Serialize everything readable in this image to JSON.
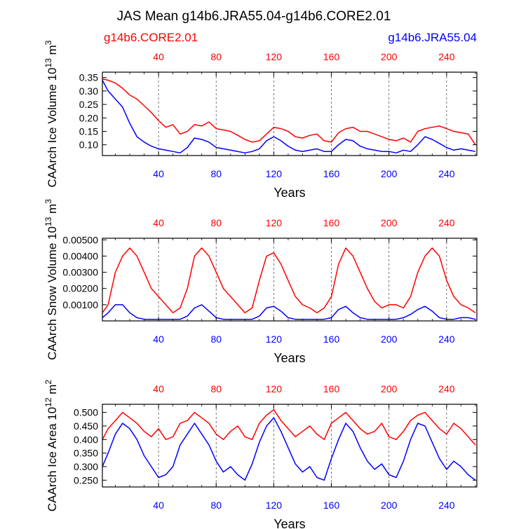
{
  "figure": {
    "title": "JAS Mean g14b6.JRA55.04-g14b6.CORE2.01",
    "legend_left": "g14b6.CORE2.01",
    "legend_right": "g14b6.JRA55.04",
    "colors": {
      "core": "#ff0000",
      "jra": "#0000ff",
      "axis": "#000000",
      "grid": "#555555"
    }
  },
  "chart_data": [
    {
      "type": "line",
      "title": "",
      "xlabel": "Years",
      "ylabel": "CAArch Ice Volume 10^13 m^3",
      "ylabel_parts": {
        "pre": "CAArch Ice Volume 10",
        "exp1": "13",
        "mid": " m",
        "exp2": "3"
      },
      "xlim": [
        1,
        261
      ],
      "ylim": [
        0.06,
        0.37
      ],
      "yticks": [
        0.1,
        0.15,
        0.2,
        0.25,
        0.3,
        0.35
      ],
      "ytick_labels": [
        "0.10",
        "0.15",
        "0.20",
        "0.25",
        "0.30",
        "0.35"
      ],
      "xticks": [
        40,
        80,
        120,
        160,
        200,
        240
      ],
      "xtick_labels": [
        "40",
        "80",
        "120",
        "160",
        "200",
        "240"
      ],
      "series": [
        {
          "name": "g14b6.CORE2.01",
          "x": [
            1,
            5,
            10,
            15,
            20,
            25,
            30,
            35,
            40,
            45,
            50,
            55,
            60,
            65,
            70,
            75,
            80,
            85,
            90,
            95,
            100,
            105,
            110,
            115,
            120,
            125,
            130,
            135,
            140,
            145,
            150,
            155,
            160,
            165,
            170,
            175,
            180,
            185,
            190,
            195,
            200,
            205,
            210,
            215,
            220,
            225,
            230,
            235,
            240,
            245,
            250,
            255,
            260
          ],
          "values": [
            0.345,
            0.34,
            0.33,
            0.31,
            0.285,
            0.27,
            0.245,
            0.22,
            0.19,
            0.165,
            0.175,
            0.14,
            0.15,
            0.175,
            0.17,
            0.185,
            0.16,
            0.155,
            0.15,
            0.135,
            0.12,
            0.11,
            0.115,
            0.14,
            0.165,
            0.16,
            0.15,
            0.13,
            0.125,
            0.135,
            0.14,
            0.115,
            0.11,
            0.145,
            0.16,
            0.165,
            0.15,
            0.15,
            0.14,
            0.13,
            0.12,
            0.115,
            0.125,
            0.11,
            0.15,
            0.16,
            0.165,
            0.17,
            0.16,
            0.15,
            0.145,
            0.14,
            0.1
          ]
        },
        {
          "name": "g14b6.JRA55.04",
          "x": [
            1,
            5,
            10,
            15,
            20,
            25,
            30,
            35,
            40,
            45,
            50,
            55,
            60,
            65,
            70,
            75,
            80,
            85,
            90,
            95,
            100,
            105,
            110,
            115,
            120,
            125,
            130,
            135,
            140,
            145,
            150,
            155,
            160,
            165,
            170,
            175,
            180,
            185,
            190,
            195,
            200,
            205,
            210,
            215,
            220,
            225,
            230,
            235,
            240,
            245,
            250,
            255,
            260
          ],
          "values": [
            0.34,
            0.3,
            0.27,
            0.24,
            0.18,
            0.13,
            0.11,
            0.095,
            0.085,
            0.08,
            0.075,
            0.07,
            0.09,
            0.125,
            0.12,
            0.11,
            0.09,
            0.085,
            0.08,
            0.075,
            0.07,
            0.075,
            0.085,
            0.115,
            0.13,
            0.115,
            0.095,
            0.08,
            0.075,
            0.08,
            0.085,
            0.075,
            0.075,
            0.1,
            0.12,
            0.115,
            0.095,
            0.085,
            0.08,
            0.075,
            0.075,
            0.07,
            0.08,
            0.075,
            0.1,
            0.13,
            0.12,
            0.105,
            0.09,
            0.08,
            0.085,
            0.08,
            0.075
          ]
        }
      ]
    },
    {
      "type": "line",
      "title": "",
      "xlabel": "Years",
      "ylabel": "CAArch Snow Volume 10^13 m^3",
      "ylabel_parts": {
        "pre": "CAArch Snow Volume 10",
        "exp1": "13",
        "mid": " m",
        "exp2": "3"
      },
      "xlim": [
        1,
        261
      ],
      "ylim": [
        0.0,
        0.0051
      ],
      "yticks": [
        0.001,
        0.002,
        0.003,
        0.004,
        0.005
      ],
      "ytick_labels": [
        "0.00100",
        "0.00200",
        "0.00300",
        "0.00400",
        "0.00500"
      ],
      "xticks": [
        40,
        80,
        120,
        160,
        200,
        240
      ],
      "xtick_labels": [
        "40",
        "80",
        "120",
        "160",
        "200",
        "240"
      ],
      "series": [
        {
          "name": "g14b6.CORE2.01",
          "x": [
            1,
            5,
            10,
            15,
            20,
            25,
            30,
            35,
            40,
            45,
            50,
            55,
            60,
            65,
            70,
            75,
            80,
            85,
            90,
            95,
            100,
            105,
            110,
            115,
            120,
            125,
            130,
            135,
            140,
            145,
            150,
            155,
            160,
            165,
            170,
            175,
            180,
            185,
            190,
            195,
            200,
            205,
            210,
            215,
            220,
            225,
            230,
            235,
            240,
            245,
            250,
            255,
            260
          ],
          "values": [
            0.0005,
            0.001,
            0.003,
            0.004,
            0.0045,
            0.004,
            0.003,
            0.002,
            0.0015,
            0.001,
            0.0005,
            0.0008,
            0.002,
            0.004,
            0.0045,
            0.004,
            0.003,
            0.002,
            0.0015,
            0.001,
            0.0005,
            0.0008,
            0.0025,
            0.004,
            0.0042,
            0.0035,
            0.0025,
            0.0015,
            0.001,
            0.0008,
            0.0005,
            0.0008,
            0.0015,
            0.0035,
            0.0045,
            0.004,
            0.003,
            0.002,
            0.0012,
            0.0008,
            0.001,
            0.001,
            0.0008,
            0.0015,
            0.003,
            0.004,
            0.0045,
            0.004,
            0.0025,
            0.0015,
            0.001,
            0.0008,
            0.0005
          ]
        },
        {
          "name": "g14b6.JRA55.04",
          "x": [
            1,
            5,
            10,
            15,
            20,
            25,
            30,
            35,
            40,
            45,
            50,
            55,
            60,
            65,
            70,
            75,
            80,
            85,
            90,
            95,
            100,
            105,
            110,
            115,
            120,
            125,
            130,
            135,
            140,
            145,
            150,
            155,
            160,
            165,
            170,
            175,
            180,
            185,
            190,
            195,
            200,
            205,
            210,
            215,
            220,
            225,
            230,
            235,
            240,
            245,
            250,
            255,
            260
          ],
          "values": [
            0.0002,
            0.0005,
            0.001,
            0.001,
            0.0005,
            0.0002,
            0.0001,
            0.0001,
            0.0001,
            0.0001,
            0.0001,
            0.0001,
            0.0003,
            0.0008,
            0.001,
            0.0006,
            0.0002,
            0.0001,
            0.0001,
            0.0001,
            0.0001,
            0.0001,
            0.0003,
            0.0008,
            0.0009,
            0.0006,
            0.0002,
            0.0001,
            0.0001,
            0.0001,
            0.0001,
            0.0001,
            0.0002,
            0.0007,
            0.0009,
            0.0005,
            0.0002,
            0.0001,
            0.0001,
            0.0001,
            0.0001,
            0.0001,
            0.0002,
            0.0004,
            0.0007,
            0.0009,
            0.0006,
            0.0002,
            0.0001,
            0.0001,
            0.0002,
            0.0002,
            0.0001
          ]
        }
      ]
    },
    {
      "type": "line",
      "title": "",
      "xlabel": "Years",
      "ylabel": "CAArch Ice Area 10^12 m^2",
      "ylabel_parts": {
        "pre": "CAArch Ice Area 10",
        "exp1": "12",
        "mid": " m",
        "exp2": "2"
      },
      "xlim": [
        1,
        261
      ],
      "ylim": [
        0.225,
        0.53
      ],
      "yticks": [
        0.25,
        0.3,
        0.35,
        0.4,
        0.45,
        0.5
      ],
      "ytick_labels": [
        "0.250",
        "0.300",
        "0.350",
        "0.400",
        "0.450",
        "0.500"
      ],
      "xticks": [
        40,
        80,
        120,
        160,
        200,
        240
      ],
      "xtick_labels": [
        "40",
        "80",
        "120",
        "160",
        "200",
        "240"
      ],
      "series": [
        {
          "name": "g14b6.CORE2.01",
          "x": [
            1,
            5,
            10,
            15,
            20,
            25,
            30,
            35,
            40,
            45,
            50,
            55,
            60,
            65,
            70,
            75,
            80,
            85,
            90,
            95,
            100,
            105,
            110,
            115,
            120,
            125,
            130,
            135,
            140,
            145,
            150,
            155,
            160,
            165,
            170,
            175,
            180,
            185,
            190,
            195,
            200,
            205,
            210,
            215,
            220,
            225,
            230,
            235,
            240,
            245,
            250,
            255,
            260
          ],
          "values": [
            0.4,
            0.44,
            0.47,
            0.5,
            0.48,
            0.46,
            0.43,
            0.41,
            0.44,
            0.4,
            0.41,
            0.46,
            0.47,
            0.5,
            0.48,
            0.46,
            0.42,
            0.4,
            0.43,
            0.45,
            0.41,
            0.4,
            0.46,
            0.49,
            0.51,
            0.47,
            0.44,
            0.41,
            0.43,
            0.45,
            0.42,
            0.4,
            0.46,
            0.48,
            0.5,
            0.47,
            0.44,
            0.42,
            0.43,
            0.46,
            0.41,
            0.4,
            0.43,
            0.47,
            0.49,
            0.5,
            0.47,
            0.44,
            0.42,
            0.46,
            0.44,
            0.41,
            0.38
          ]
        },
        {
          "name": "g14b6.JRA55.04",
          "x": [
            1,
            5,
            10,
            15,
            20,
            25,
            30,
            35,
            40,
            45,
            50,
            55,
            60,
            65,
            70,
            75,
            80,
            85,
            90,
            95,
            100,
            105,
            110,
            115,
            120,
            125,
            130,
            135,
            140,
            145,
            150,
            155,
            160,
            165,
            170,
            175,
            180,
            185,
            190,
            195,
            200,
            205,
            210,
            215,
            220,
            225,
            230,
            235,
            240,
            245,
            250,
            255,
            260
          ],
          "values": [
            0.3,
            0.35,
            0.42,
            0.46,
            0.44,
            0.4,
            0.34,
            0.3,
            0.26,
            0.27,
            0.3,
            0.38,
            0.42,
            0.46,
            0.42,
            0.38,
            0.32,
            0.28,
            0.3,
            0.27,
            0.25,
            0.31,
            0.39,
            0.45,
            0.48,
            0.43,
            0.37,
            0.31,
            0.28,
            0.3,
            0.26,
            0.25,
            0.33,
            0.4,
            0.46,
            0.43,
            0.37,
            0.32,
            0.29,
            0.31,
            0.27,
            0.26,
            0.32,
            0.4,
            0.46,
            0.45,
            0.39,
            0.33,
            0.29,
            0.32,
            0.3,
            0.27,
            0.25
          ]
        }
      ]
    }
  ]
}
